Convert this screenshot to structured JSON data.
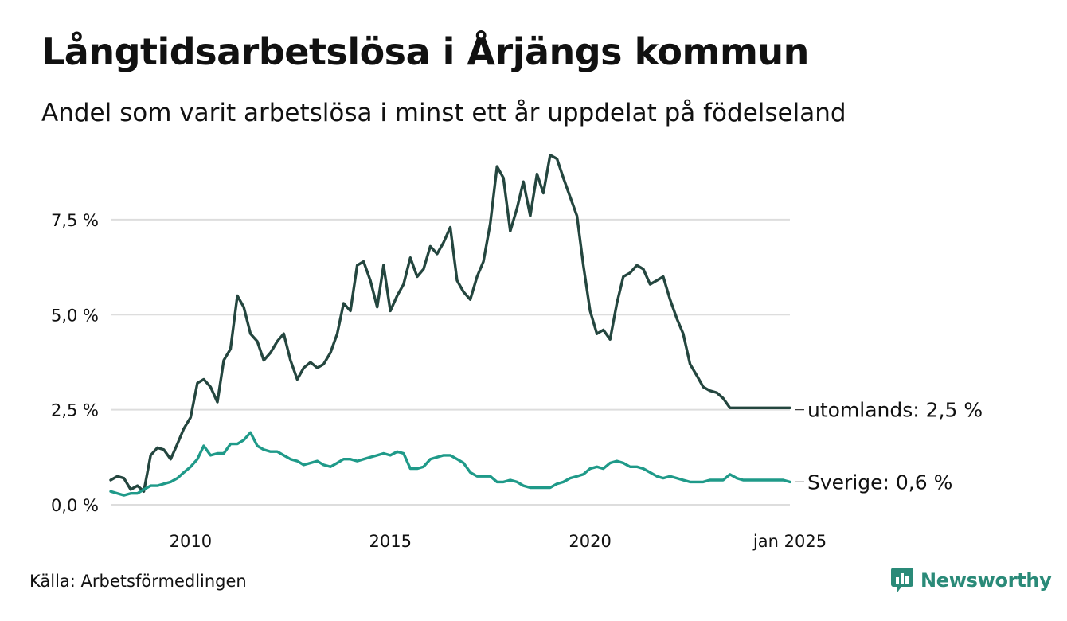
{
  "title": "Långtidsarbetslösa i Årjängs kommun",
  "subtitle": "Andel som varit arbetslösa i minst ett år uppdelat på födelseland",
  "source": "Källa: Arbetsförmedlingen",
  "brand": {
    "name": "Newsworthy",
    "icon": "newsworthy-logo-icon"
  },
  "colors": {
    "utomlands": "#24463f",
    "sverige": "#1f9a89",
    "grid": "#dddddd"
  },
  "chart_data": {
    "type": "line",
    "title": "Långtidsarbetslösa i Årjängs kommun",
    "xlabel": "",
    "ylabel": "",
    "xlim": [
      2008.0,
      2025.0
    ],
    "ylim": [
      0,
      9.3
    ],
    "yticks": [
      0,
      2.5,
      5.0,
      7.5
    ],
    "ytick_labels": [
      "0,0 %",
      "2,5 %",
      "5,0 %",
      "7,5 %"
    ],
    "xticks": [
      2010,
      2015,
      2020,
      2025
    ],
    "xtick_labels": [
      "2010",
      "2015",
      "2020",
      "jan 2025"
    ],
    "grid": true,
    "series": [
      {
        "name": "utomlands",
        "end_label": "utomlands: 2,5 %",
        "x": [
          2008.0,
          2008.17,
          2008.33,
          2008.5,
          2008.67,
          2008.83,
          2009.0,
          2009.17,
          2009.33,
          2009.5,
          2009.67,
          2009.83,
          2010.0,
          2010.17,
          2010.33,
          2010.5,
          2010.67,
          2010.83,
          2011.0,
          2011.17,
          2011.33,
          2011.5,
          2011.67,
          2011.83,
          2012.0,
          2012.17,
          2012.33,
          2012.5,
          2012.67,
          2012.83,
          2013.0,
          2013.17,
          2013.33,
          2013.5,
          2013.67,
          2013.83,
          2014.0,
          2014.17,
          2014.33,
          2014.5,
          2014.67,
          2014.83,
          2015.0,
          2015.17,
          2015.33,
          2015.5,
          2015.67,
          2015.83,
          2016.0,
          2016.17,
          2016.33,
          2016.5,
          2016.67,
          2016.83,
          2017.0,
          2017.17,
          2017.33,
          2017.5,
          2017.67,
          2017.83,
          2018.0,
          2018.17,
          2018.33,
          2018.5,
          2018.67,
          2018.83,
          2019.0,
          2019.17,
          2019.33,
          2019.5,
          2019.67,
          2019.83,
          2020.0,
          2020.17,
          2020.33,
          2020.5,
          2020.67,
          2020.83,
          2021.0,
          2021.17,
          2021.33,
          2021.5,
          2021.67,
          2021.83,
          2022.0,
          2022.17,
          2022.33,
          2022.5,
          2022.67,
          2022.83,
          2023.0,
          2023.17,
          2023.33,
          2023.5,
          2023.67,
          2023.83,
          2024.0,
          2024.17,
          2024.33,
          2024.5,
          2024.67,
          2024.83,
          2025.0
        ],
        "values": [
          0.65,
          0.75,
          0.7,
          0.4,
          0.5,
          0.35,
          1.3,
          1.5,
          1.45,
          1.2,
          1.6,
          2.0,
          2.3,
          3.2,
          3.3,
          3.1,
          2.7,
          3.8,
          4.1,
          5.5,
          5.2,
          4.5,
          4.3,
          3.8,
          4.0,
          4.3,
          4.5,
          3.8,
          3.3,
          3.6,
          3.75,
          3.6,
          3.7,
          4.0,
          4.5,
          5.3,
          5.1,
          6.3,
          6.4,
          5.9,
          5.2,
          6.3,
          5.1,
          5.5,
          5.8,
          6.5,
          6.0,
          6.2,
          6.8,
          6.6,
          6.9,
          7.3,
          5.9,
          5.6,
          5.4,
          6.0,
          6.4,
          7.4,
          8.9,
          8.6,
          7.2,
          7.8,
          8.5,
          7.6,
          8.7,
          8.2,
          9.2,
          9.1,
          8.6,
          8.1,
          7.6,
          6.3,
          5.1,
          4.5,
          4.6,
          4.35,
          5.3,
          6.0,
          6.1,
          6.3,
          6.2,
          5.8,
          5.9,
          6.0,
          5.4,
          4.9,
          4.5,
          3.7,
          3.4,
          3.1,
          3.0,
          2.95,
          2.8,
          2.55,
          2.55,
          2.55,
          2.55,
          2.55,
          2.55,
          2.55,
          2.55,
          2.55,
          2.55
        ],
        "final_value": 2.5
      },
      {
        "name": "Sverige",
        "end_label": "Sverige: 0,6 %",
        "x": [
          2008.0,
          2008.17,
          2008.33,
          2008.5,
          2008.67,
          2008.83,
          2009.0,
          2009.17,
          2009.33,
          2009.5,
          2009.67,
          2009.83,
          2010.0,
          2010.17,
          2010.33,
          2010.5,
          2010.67,
          2010.83,
          2011.0,
          2011.17,
          2011.33,
          2011.5,
          2011.67,
          2011.83,
          2012.0,
          2012.17,
          2012.33,
          2012.5,
          2012.67,
          2012.83,
          2013.0,
          2013.17,
          2013.33,
          2013.5,
          2013.67,
          2013.83,
          2014.0,
          2014.17,
          2014.33,
          2014.5,
          2014.67,
          2014.83,
          2015.0,
          2015.17,
          2015.33,
          2015.5,
          2015.67,
          2015.83,
          2016.0,
          2016.17,
          2016.33,
          2016.5,
          2016.67,
          2016.83,
          2017.0,
          2017.17,
          2017.33,
          2017.5,
          2017.67,
          2017.83,
          2018.0,
          2018.17,
          2018.33,
          2018.5,
          2018.67,
          2018.83,
          2019.0,
          2019.17,
          2019.33,
          2019.5,
          2019.67,
          2019.83,
          2020.0,
          2020.17,
          2020.33,
          2020.5,
          2020.67,
          2020.83,
          2021.0,
          2021.17,
          2021.33,
          2021.5,
          2021.67,
          2021.83,
          2022.0,
          2022.17,
          2022.33,
          2022.5,
          2022.67,
          2022.83,
          2023.0,
          2023.17,
          2023.33,
          2023.5,
          2023.67,
          2023.83,
          2024.0,
          2024.17,
          2024.33,
          2024.5,
          2024.67,
          2024.83,
          2025.0
        ],
        "values": [
          0.35,
          0.3,
          0.25,
          0.3,
          0.3,
          0.4,
          0.5,
          0.5,
          0.55,
          0.6,
          0.7,
          0.85,
          1.0,
          1.2,
          1.55,
          1.3,
          1.35,
          1.35,
          1.6,
          1.6,
          1.7,
          1.9,
          1.55,
          1.45,
          1.4,
          1.4,
          1.3,
          1.2,
          1.15,
          1.05,
          1.1,
          1.15,
          1.05,
          1.0,
          1.1,
          1.2,
          1.2,
          1.15,
          1.2,
          1.25,
          1.3,
          1.35,
          1.3,
          1.4,
          1.35,
          0.95,
          0.95,
          1.0,
          1.2,
          1.25,
          1.3,
          1.3,
          1.2,
          1.1,
          0.85,
          0.75,
          0.75,
          0.75,
          0.6,
          0.6,
          0.65,
          0.6,
          0.5,
          0.45,
          0.45,
          0.45,
          0.45,
          0.55,
          0.6,
          0.7,
          0.75,
          0.8,
          0.95,
          1.0,
          0.95,
          1.1,
          1.15,
          1.1,
          1.0,
          1.0,
          0.95,
          0.85,
          0.75,
          0.7,
          0.75,
          0.7,
          0.65,
          0.6,
          0.6,
          0.6,
          0.65,
          0.65,
          0.65,
          0.8,
          0.7,
          0.65,
          0.65,
          0.65,
          0.65,
          0.65,
          0.65,
          0.65,
          0.6
        ],
        "final_value": 0.6
      }
    ]
  }
}
